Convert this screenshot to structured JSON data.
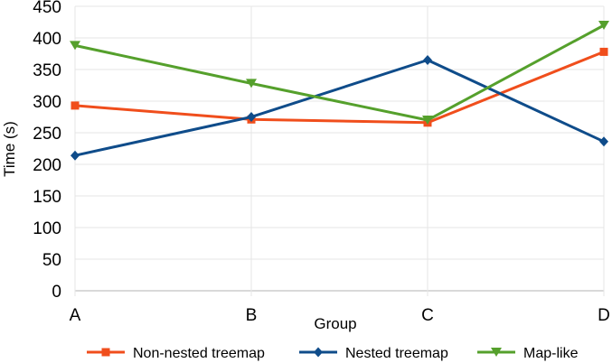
{
  "chart_data": {
    "type": "line",
    "categories": [
      "A",
      "B",
      "C",
      "D"
    ],
    "series": [
      {
        "name": "Non-nested treemap",
        "values": [
          293,
          271,
          266,
          378
        ],
        "color": "#f04e1c",
        "marker": "square"
      },
      {
        "name": "Nested treemap",
        "values": [
          214,
          275,
          365,
          236
        ],
        "color": "#0f4c8a",
        "marker": "diamond"
      },
      {
        "name": "Map-like",
        "values": [
          388,
          328,
          270,
          420
        ],
        "color": "#55a02c",
        "marker": "triangle-down"
      }
    ],
    "title": "",
    "xlabel": "Group",
    "ylabel": "Time (s)",
    "ylim": [
      0,
      450
    ],
    "yticks": [
      0,
      50,
      100,
      150,
      200,
      250,
      300,
      350,
      400,
      450
    ],
    "grid": true,
    "legend_position": "bottom"
  }
}
